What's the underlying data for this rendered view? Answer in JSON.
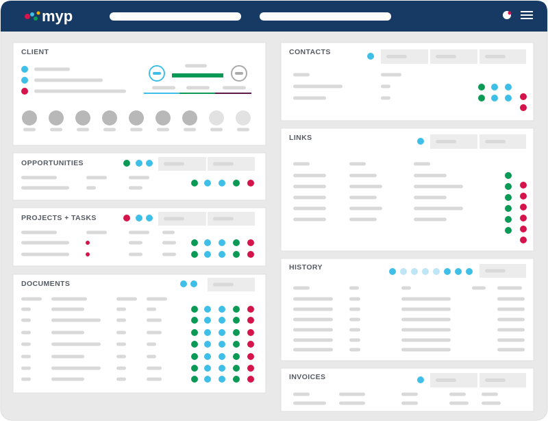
{
  "header": {
    "logo": "myp"
  },
  "panels": [
    {
      "title": "CLIENT"
    },
    {
      "title": "OPPORTUNITIES"
    },
    {
      "title": "PROJECTS + TASKS"
    },
    {
      "title": "DOCUMENTS"
    },
    {
      "title": "CONTACTS"
    },
    {
      "title": "LINKS"
    },
    {
      "title": "HISTORY"
    },
    {
      "title": "INVOICES"
    }
  ]
}
